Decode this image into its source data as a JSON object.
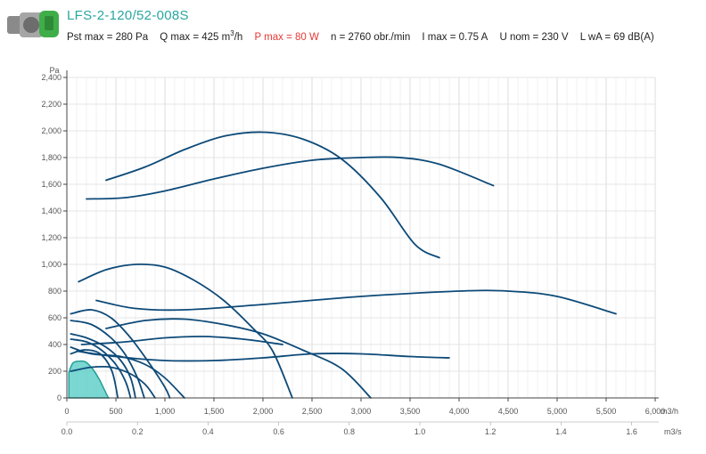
{
  "product": {
    "title": "LFS-2-120/52-008S",
    "image_icon": "fan-motor-icon",
    "specs": {
      "pst_max": "Pst max = 280 Pa",
      "q_max_prefix": "Q max = 425 m",
      "q_max_sup": "3",
      "q_max_suffix": "/h",
      "p_max": "P max = 80 W",
      "speed": "n = 2760 obr./min",
      "i_max": "I max = 0.75 A",
      "u_nom": "U nom = 230 V",
      "lwa": "L wA = 69 dB(A)"
    }
  },
  "colors": {
    "curve": "#0d4a78",
    "highlight_fill": "#4fc9c1",
    "highlight_stroke": "#1d9c93",
    "title": "#2aa7a0",
    "power": "#e53935",
    "grid": "#e4e4e4"
  },
  "chart_data": {
    "type": "line",
    "ylabel": "Pa",
    "xlabel_primary": "m3/h",
    "xlabel_secondary": "m3/s",
    "xlim": [
      0,
      6000
    ],
    "ylim": [
      0,
      2400
    ],
    "secondary_xlim": [
      0,
      1.6667
    ],
    "xticks": [
      {
        "v": 0,
        "label": "0"
      },
      {
        "v": 500,
        "label": "500"
      },
      {
        "v": 1000,
        "label": "1,000"
      },
      {
        "v": 1500,
        "label": "1,500"
      },
      {
        "v": 2000,
        "label": "2,000"
      },
      {
        "v": 2500,
        "label": "2,500"
      },
      {
        "v": 3000,
        "label": "3,000"
      },
      {
        "v": 3500,
        "label": "3,500"
      },
      {
        "v": 4000,
        "label": "4,000"
      },
      {
        "v": 4500,
        "label": "4,500"
      },
      {
        "v": 5000,
        "label": "5,000"
      },
      {
        "v": 5500,
        "label": "5,500"
      },
      {
        "v": 6000,
        "label": "6,000"
      }
    ],
    "yticks": [
      {
        "v": 0,
        "label": "0"
      },
      {
        "v": 200,
        "label": "200"
      },
      {
        "v": 400,
        "label": "400"
      },
      {
        "v": 600,
        "label": "600"
      },
      {
        "v": 800,
        "label": "800"
      },
      {
        "v": 1000,
        "label": "1,000"
      },
      {
        "v": 1200,
        "label": "1,200"
      },
      {
        "v": 1400,
        "label": "1,400"
      },
      {
        "v": 1600,
        "label": "1,600"
      },
      {
        "v": 1800,
        "label": "1,800"
      },
      {
        "v": 2000,
        "label": "2,000"
      },
      {
        "v": 2200,
        "label": "2,200"
      },
      {
        "v": 2400,
        "label": "2,400"
      }
    ],
    "secondary_xticks": [
      {
        "v": 0,
        "label": "0.0"
      },
      {
        "v": 0.2,
        "label": "0.2"
      },
      {
        "v": 0.4,
        "label": "0.4"
      },
      {
        "v": 0.6,
        "label": "0.6"
      },
      {
        "v": 0.8,
        "label": "0.8"
      },
      {
        "v": 1.0,
        "label": "1.0"
      },
      {
        "v": 1.2,
        "label": "1.2"
      },
      {
        "v": 1.4,
        "label": "1.4"
      },
      {
        "v": 1.6,
        "label": "1.6"
      }
    ],
    "grid": true,
    "highlighted": {
      "name": "LFS-2-120/52-008S",
      "points": [
        [
          20,
          190
        ],
        [
          60,
          260
        ],
        [
          120,
          275
        ],
        [
          190,
          270
        ],
        [
          260,
          220
        ],
        [
          330,
          140
        ],
        [
          390,
          50
        ],
        [
          425,
          0
        ]
      ]
    },
    "series": [
      {
        "points": [
          [
            400,
            1630
          ],
          [
            800,
            1730
          ],
          [
            1200,
            1860
          ],
          [
            1600,
            1960
          ],
          [
            2000,
            1990
          ],
          [
            2400,
            1940
          ],
          [
            2800,
            1790
          ],
          [
            3200,
            1500
          ],
          [
            3550,
            1150
          ],
          [
            3800,
            1050
          ]
        ]
      },
      {
        "points": [
          [
            200,
            1490
          ],
          [
            600,
            1500
          ],
          [
            1000,
            1550
          ],
          [
            1500,
            1640
          ],
          [
            2000,
            1720
          ],
          [
            2500,
            1780
          ],
          [
            3000,
            1800
          ],
          [
            3400,
            1800
          ],
          [
            3800,
            1750
          ],
          [
            4350,
            1590
          ]
        ]
      },
      {
        "points": [
          [
            120,
            870
          ],
          [
            400,
            960
          ],
          [
            700,
            1000
          ],
          [
            1000,
            980
          ],
          [
            1300,
            880
          ],
          [
            1600,
            730
          ],
          [
            1900,
            520
          ],
          [
            2100,
            350
          ],
          [
            2300,
            0
          ]
        ]
      },
      {
        "points": [
          [
            300,
            730
          ],
          [
            700,
            670
          ],
          [
            1200,
            660
          ],
          [
            2000,
            700
          ],
          [
            3000,
            760
          ],
          [
            4000,
            800
          ],
          [
            4500,
            800
          ],
          [
            5000,
            760
          ],
          [
            5600,
            630
          ]
        ]
      },
      {
        "points": [
          [
            400,
            520
          ],
          [
            800,
            580
          ],
          [
            1200,
            590
          ],
          [
            1600,
            550
          ],
          [
            2000,
            480
          ],
          [
            2400,
            360
          ],
          [
            2800,
            220
          ],
          [
            3100,
            0
          ]
        ]
      },
      {
        "points": [
          [
            150,
            400
          ],
          [
            600,
            420
          ],
          [
            1000,
            450
          ],
          [
            1400,
            460
          ],
          [
            1800,
            440
          ],
          [
            2200,
            400
          ]
        ]
      },
      {
        "points": [
          [
            100,
            350
          ],
          [
            500,
            310
          ],
          [
            1000,
            280
          ],
          [
            1500,
            280
          ],
          [
            2000,
            300
          ],
          [
            2500,
            330
          ],
          [
            3000,
            330
          ],
          [
            3500,
            310
          ],
          [
            3900,
            300
          ]
        ]
      },
      {
        "points": [
          [
            40,
            630
          ],
          [
            250,
            660
          ],
          [
            450,
            600
          ],
          [
            650,
            450
          ],
          [
            850,
            250
          ],
          [
            1000,
            80
          ],
          [
            1050,
            0
          ]
        ]
      },
      {
        "points": [
          [
            40,
            580
          ],
          [
            250,
            550
          ],
          [
            450,
            450
          ],
          [
            600,
            320
          ],
          [
            720,
            150
          ],
          [
            790,
            0
          ]
        ]
      },
      {
        "points": [
          [
            40,
            480
          ],
          [
            200,
            450
          ],
          [
            400,
            380
          ],
          [
            550,
            280
          ],
          [
            650,
            150
          ],
          [
            700,
            0
          ]
        ]
      },
      {
        "points": [
          [
            40,
            440
          ],
          [
            200,
            420
          ],
          [
            350,
            360
          ],
          [
            500,
            250
          ],
          [
            600,
            120
          ],
          [
            650,
            0
          ]
        ]
      },
      {
        "points": [
          [
            40,
            380
          ],
          [
            250,
            330
          ],
          [
            550,
            310
          ],
          [
            800,
            250
          ],
          [
            1000,
            150
          ],
          [
            1200,
            0
          ]
        ]
      },
      {
        "points": [
          [
            40,
            330
          ],
          [
            180,
            360
          ],
          [
            340,
            330
          ],
          [
            460,
            200
          ],
          [
            520,
            0
          ]
        ]
      },
      {
        "points": [
          [
            40,
            200
          ],
          [
            250,
            230
          ],
          [
            450,
            230
          ],
          [
            650,
            180
          ],
          [
            800,
            100
          ],
          [
            900,
            0
          ]
        ]
      }
    ]
  }
}
